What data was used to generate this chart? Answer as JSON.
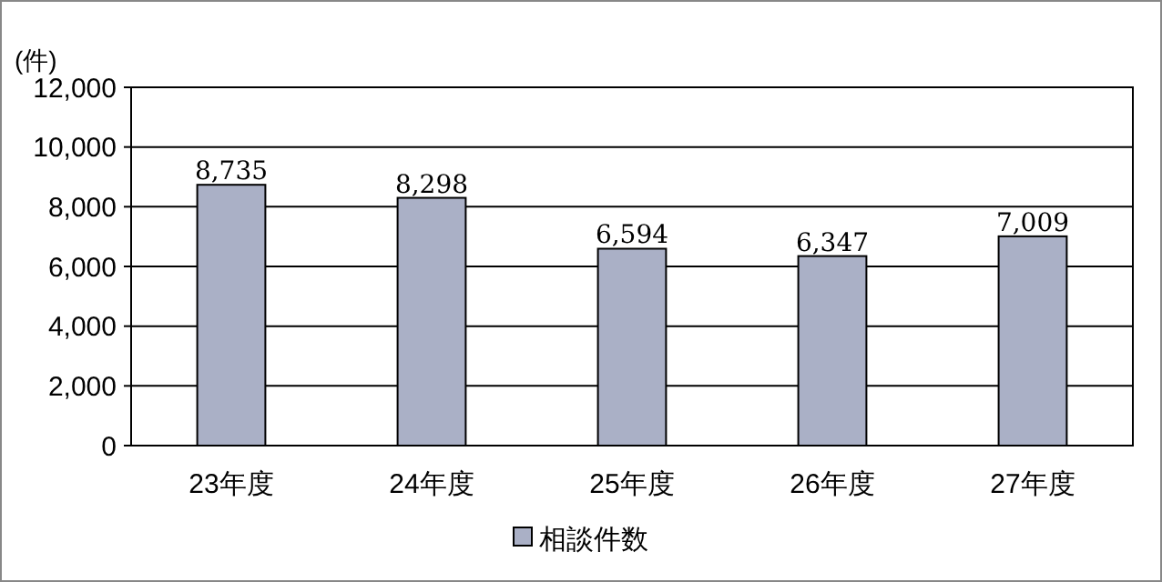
{
  "chart_data": {
    "type": "bar",
    "ylabel": "(件)",
    "categories": [
      "23年度",
      "24年度",
      "25年度",
      "26年度",
      "27年度"
    ],
    "series": [
      {
        "name": "相談件数",
        "color": "#aab0c6",
        "values": [
          8735,
          8298,
          6594,
          6347,
          7009
        ],
        "value_labels": [
          "8,735",
          "8,298",
          "6,594",
          "6,347",
          "7,009"
        ]
      }
    ],
    "ylim": [
      0,
      12000
    ],
    "yticks": [
      {
        "value": 0,
        "label": "0"
      },
      {
        "value": 2000,
        "label": "2,000"
      },
      {
        "value": 4000,
        "label": "4,000"
      },
      {
        "value": 6000,
        "label": "6,000"
      },
      {
        "value": 8000,
        "label": "8,000"
      },
      {
        "value": 10000,
        "label": "10,000"
      },
      {
        "value": 12000,
        "label": "12,000"
      }
    ],
    "grid": "y",
    "legend": "bottom"
  }
}
